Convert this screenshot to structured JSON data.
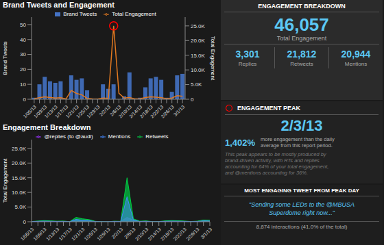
{
  "chart_data": [
    {
      "type": "bar",
      "title": "Brand Tweets and Engagement",
      "ylabel": "Brand Tweets",
      "y2label": "Total Engagement",
      "categories": [
        "1/05/13",
        null,
        "1/09/13",
        null,
        "1/13/13",
        null,
        "1/17/13",
        null,
        "1/21/13",
        null,
        "1/25/13",
        null,
        "1/29/13",
        null,
        "2/2/13",
        null,
        "2/6/13",
        null,
        "2/10/13",
        null,
        "2/14/13",
        null,
        "2/18/13",
        null,
        "2/22/13",
        null,
        "2/26/13",
        null,
        "3/1/13"
      ],
      "series": [
        {
          "name": "Brand Tweets",
          "type": "bar",
          "color": "#4472c4",
          "values": [
            1,
            10,
            15,
            12,
            11,
            12,
            0,
            16,
            13,
            14,
            6,
            0,
            0,
            10,
            7,
            10,
            0,
            2,
            18,
            0,
            1,
            8,
            14,
            15,
            13,
            1,
            5,
            16,
            17
          ]
        },
        {
          "name": "Total Engagement",
          "type": "line",
          "color": "#e07820",
          "axis": "y2",
          "values": [
            200,
            500,
            800,
            600,
            400,
            500,
            100,
            3000,
            2000,
            1500,
            300,
            100,
            50,
            400,
            300,
            25000,
            2000,
            400,
            600,
            100,
            200,
            600,
            800,
            700,
            500,
            200,
            400,
            1200,
            1000
          ]
        },
        {
          "type": "scatter",
          "marker": "circle",
          "color": "red",
          "axis": "y2",
          "values": [
            null,
            null,
            null,
            null,
            null,
            null,
            null,
            null,
            null,
            null,
            null,
            null,
            null,
            null,
            null,
            25000,
            null,
            null,
            null,
            null,
            null,
            null,
            null,
            null,
            null,
            null,
            null,
            null,
            null
          ]
        }
      ],
      "ylim": [
        0,
        55
      ],
      "yticks": [
        0,
        10,
        20,
        30,
        40,
        50
      ],
      "y2lim": [
        0,
        28000
      ],
      "y2ticks": [
        0,
        {
          "value": 5000,
          "label": "5.0K"
        },
        {
          "value": 10000,
          "label": "10.0K"
        },
        {
          "value": 15000,
          "label": "15.0K"
        },
        {
          "value": 20000,
          "label": "20.0K"
        },
        {
          "value": 25000,
          "label": "25.0K"
        }
      ],
      "legend": "top",
      "grid": false
    },
    {
      "type": "area",
      "title": "Engagement Breakdown",
      "ylabel": "Total Engagement",
      "categories": [
        "1/05/13",
        null,
        "1/09/13",
        null,
        "1/13/13",
        null,
        "1/17/13",
        null,
        "1/21/13",
        null,
        "1/25/13",
        null,
        "1/29/13",
        null,
        "2/2/13",
        null,
        "2/6/13",
        null,
        "2/10/13",
        null,
        "2/14/13",
        null,
        "2/18/13",
        null,
        "2/22/13",
        null,
        "2/26/13",
        null,
        "3/1/13"
      ],
      "series": [
        {
          "name": "@replies (to @audi)",
          "color": "#9b30ff",
          "values": [
            50,
            100,
            200,
            150,
            100,
            120,
            30,
            700,
            500,
            400,
            80,
            30,
            15,
            100,
            80,
            1500,
            500,
            100,
            150,
            30,
            50,
            150,
            200,
            175,
            125,
            50,
            100,
            300,
            250
          ]
        },
        {
          "name": "Retweets",
          "color": "#00cc44",
          "values": [
            100,
            250,
            400,
            300,
            200,
            250,
            50,
            1500,
            1000,
            750,
            150,
            50,
            25,
            200,
            150,
            15000,
            1000,
            200,
            300,
            50,
            100,
            300,
            400,
            350,
            250,
            100,
            200,
            600,
            500
          ]
        },
        {
          "name": "Mentions",
          "color": "#4488ff",
          "values": [
            50,
            150,
            200,
            150,
            100,
            130,
            20,
            800,
            500,
            350,
            70,
            20,
            10,
            100,
            70,
            8500,
            500,
            100,
            150,
            20,
            50,
            150,
            200,
            175,
            125,
            50,
            100,
            300,
            250
          ]
        }
      ],
      "ylim": [
        0,
        28000
      ],
      "yticks": [
        0,
        {
          "value": 5000,
          "label": "5.0K"
        },
        {
          "value": 10000,
          "label": "10.0K"
        },
        {
          "value": 15000,
          "label": "15.0K"
        },
        {
          "value": 20000,
          "label": "20.0K"
        },
        {
          "value": 25000,
          "label": "25.0K"
        }
      ],
      "stacked": false,
      "legend": "top",
      "grid": false
    }
  ],
  "annotations": [
    {
      "title": "ENGAGEMENT BREAKDOWN",
      "headline": "46,057",
      "headline_label": "Total Engagement",
      "stats": [
        {
          "value": "3,301",
          "label": "Replies"
        },
        {
          "value": "21,812",
          "label": "Retweets"
        },
        {
          "value": "20,944",
          "label": "Mentions"
        }
      ]
    },
    {
      "title": "ENGAGEMENT PEAK",
      "headline": "2/3/13",
      "stat": "1,402%",
      "stat_text": "more engagement than the daily\naverage from this report period.",
      "note": "This peak appears to be mostly produced by\nbrand-driven activity, with RTs and replies\naccounting for 64% of your total engagement,\nand @mentions accounting for 36%."
    },
    {
      "title": "MOST ENGAGING TWEET FROM PEAK DAY",
      "quote": "\"Sending some LEDs to the @MBUSA\nSuperdome right now...\"",
      "footer": "8,874 interactions (41.0% of the total)"
    }
  ]
}
